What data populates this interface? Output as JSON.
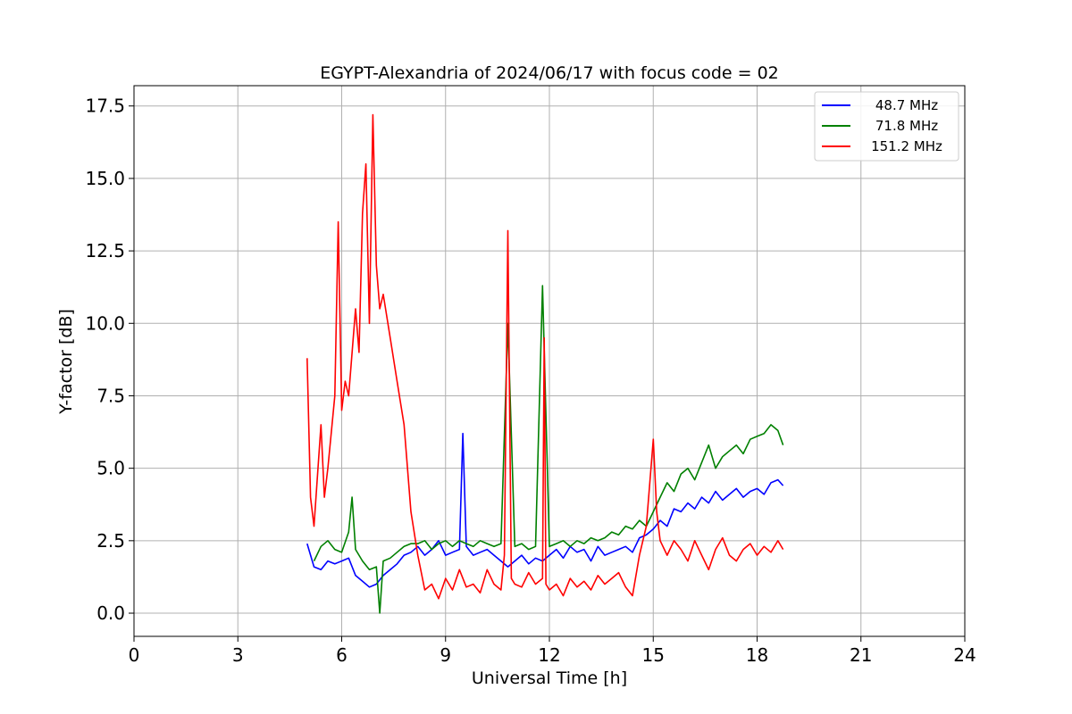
{
  "chart_data": {
    "type": "line",
    "title": "EGYPT-Alexandria of 2024/06/17 with focus code = 02",
    "xlabel": "Universal Time [h]",
    "ylabel": "Y-factor [dB]",
    "xlim": [
      0,
      24
    ],
    "ylim": [
      -0.8,
      18.2
    ],
    "xticks": [
      "0",
      "3",
      "6",
      "9",
      "12",
      "15",
      "18",
      "21",
      "24"
    ],
    "yticks": [
      "0.0",
      "2.5",
      "5.0",
      "7.5",
      "10.0",
      "12.5",
      "15.0",
      "17.5"
    ],
    "grid": true,
    "legend_position": "top-right",
    "series": [
      {
        "name": "48.7 MHz",
        "color": "#0000ff",
        "x": [
          5.0,
          5.2,
          5.4,
          5.6,
          5.8,
          6.0,
          6.2,
          6.4,
          6.6,
          6.8,
          7.0,
          7.2,
          7.4,
          7.6,
          7.8,
          8.0,
          8.2,
          8.4,
          8.6,
          8.8,
          9.0,
          9.2,
          9.4,
          9.5,
          9.6,
          9.8,
          10.0,
          10.2,
          10.4,
          10.6,
          10.8,
          11.0,
          11.2,
          11.4,
          11.6,
          11.8,
          12.0,
          12.2,
          12.4,
          12.6,
          12.8,
          13.0,
          13.2,
          13.4,
          13.6,
          13.8,
          14.0,
          14.2,
          14.4,
          14.6,
          14.8,
          15.0,
          15.2,
          15.4,
          15.6,
          15.8,
          16.0,
          16.2,
          16.4,
          16.6,
          16.8,
          17.0,
          17.2,
          17.4,
          17.6,
          17.8,
          18.0,
          18.2,
          18.4,
          18.6,
          18.75
        ],
        "y": [
          2.4,
          1.6,
          1.5,
          1.8,
          1.7,
          1.8,
          1.9,
          1.3,
          1.1,
          0.9,
          1.0,
          1.3,
          1.5,
          1.7,
          2.0,
          2.1,
          2.3,
          2.0,
          2.2,
          2.5,
          2.0,
          2.1,
          2.2,
          6.2,
          2.3,
          2.0,
          2.1,
          2.2,
          2.0,
          1.8,
          1.6,
          1.8,
          2.0,
          1.7,
          1.9,
          1.8,
          2.0,
          2.2,
          1.9,
          2.3,
          2.1,
          2.2,
          1.8,
          2.3,
          2.0,
          2.1,
          2.2,
          2.3,
          2.1,
          2.6,
          2.7,
          2.9,
          3.2,
          3.0,
          3.6,
          3.5,
          3.8,
          3.6,
          4.0,
          3.8,
          4.2,
          3.9,
          4.1,
          4.3,
          4.0,
          4.2,
          4.3,
          4.1,
          4.5,
          4.6,
          4.4
        ]
      },
      {
        "name": "71.8 MHz",
        "color": "#008000",
        "x": [
          5.2,
          5.4,
          5.6,
          5.8,
          6.0,
          6.2,
          6.3,
          6.4,
          6.6,
          6.8,
          7.0,
          7.1,
          7.2,
          7.4,
          7.6,
          7.8,
          8.0,
          8.2,
          8.4,
          8.6,
          8.8,
          9.0,
          9.2,
          9.4,
          9.6,
          9.8,
          10.0,
          10.2,
          10.4,
          10.6,
          10.8,
          11.0,
          11.2,
          11.4,
          11.6,
          11.8,
          12.0,
          12.2,
          12.4,
          12.6,
          12.8,
          13.0,
          13.2,
          13.4,
          13.6,
          13.8,
          14.0,
          14.2,
          14.4,
          14.6,
          14.8,
          15.0,
          15.2,
          15.4,
          15.6,
          15.8,
          16.0,
          16.2,
          16.4,
          16.6,
          16.8,
          17.0,
          17.2,
          17.4,
          17.6,
          17.8,
          18.0,
          18.2,
          18.4,
          18.6,
          18.75
        ],
        "y": [
          1.8,
          2.3,
          2.5,
          2.2,
          2.1,
          2.8,
          4.0,
          2.2,
          1.8,
          1.5,
          1.6,
          0.0,
          1.8,
          1.9,
          2.1,
          2.3,
          2.4,
          2.4,
          2.5,
          2.2,
          2.4,
          2.5,
          2.3,
          2.5,
          2.4,
          2.3,
          2.5,
          2.4,
          2.3,
          2.4,
          10.0,
          2.3,
          2.4,
          2.2,
          2.3,
          11.3,
          2.3,
          2.4,
          2.5,
          2.3,
          2.5,
          2.4,
          2.6,
          2.5,
          2.6,
          2.8,
          2.7,
          3.0,
          2.9,
          3.2,
          3.0,
          3.5,
          4.0,
          4.5,
          4.2,
          4.8,
          5.0,
          4.6,
          5.2,
          5.8,
          5.0,
          5.4,
          5.6,
          5.8,
          5.5,
          6.0,
          6.1,
          6.2,
          6.5,
          6.3,
          5.8
        ]
      },
      {
        "name": "151.2 MHz",
        "color": "#ff0000",
        "x": [
          5.0,
          5.1,
          5.2,
          5.4,
          5.5,
          5.6,
          5.8,
          5.9,
          6.0,
          6.1,
          6.2,
          6.4,
          6.5,
          6.6,
          6.7,
          6.8,
          6.9,
          7.0,
          7.1,
          7.2,
          7.4,
          7.6,
          7.8,
          8.0,
          8.2,
          8.4,
          8.6,
          8.8,
          9.0,
          9.2,
          9.4,
          9.6,
          9.8,
          10.0,
          10.2,
          10.4,
          10.6,
          10.7,
          10.8,
          10.9,
          11.0,
          11.2,
          11.4,
          11.6,
          11.8,
          11.85,
          11.9,
          12.0,
          12.2,
          12.4,
          12.6,
          12.8,
          13.0,
          13.2,
          13.4,
          13.6,
          13.8,
          14.0,
          14.2,
          14.4,
          14.6,
          14.8,
          15.0,
          15.1,
          15.2,
          15.4,
          15.6,
          15.8,
          16.0,
          16.2,
          16.4,
          16.6,
          16.8,
          17.0,
          17.2,
          17.4,
          17.6,
          17.8,
          18.0,
          18.2,
          18.4,
          18.6,
          18.75
        ],
        "y": [
          8.8,
          4.0,
          3.0,
          6.5,
          4.0,
          5.0,
          7.5,
          13.5,
          7.0,
          8.0,
          7.5,
          10.5,
          9.0,
          13.8,
          15.5,
          10.0,
          17.2,
          12.0,
          10.5,
          11.0,
          9.5,
          8.0,
          6.5,
          3.5,
          2.0,
          0.8,
          1.0,
          0.5,
          1.2,
          0.8,
          1.5,
          0.9,
          1.0,
          0.7,
          1.5,
          1.0,
          0.8,
          2.0,
          13.2,
          1.2,
          1.0,
          0.9,
          1.4,
          1.0,
          1.2,
          9.5,
          1.0,
          0.8,
          1.0,
          0.6,
          1.2,
          0.9,
          1.1,
          0.8,
          1.3,
          1.0,
          1.2,
          1.4,
          0.9,
          0.6,
          2.0,
          3.0,
          6.0,
          3.5,
          2.5,
          2.0,
          2.5,
          2.2,
          1.8,
          2.5,
          2.0,
          1.5,
          2.2,
          2.6,
          2.0,
          1.8,
          2.2,
          2.4,
          2.0,
          2.3,
          2.1,
          2.5,
          2.2
        ]
      }
    ]
  }
}
